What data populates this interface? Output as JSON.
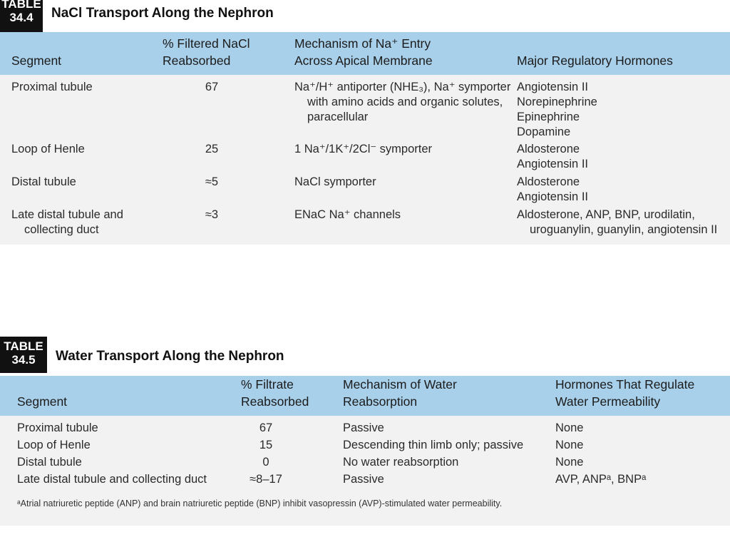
{
  "tables": [
    {
      "label": [
        "TABLE",
        "34.4"
      ],
      "title": "NaCl Transport Along the Nephron",
      "columns": [
        [
          "Segment"
        ],
        [
          "% Filtered NaCl",
          "Reabsorbed"
        ],
        [
          "Mechanism of Na⁺ Entry",
          "Across Apical Membrane"
        ],
        [
          "Major Regulatory Hormones"
        ]
      ],
      "rows": [
        [
          "Proximal tubule",
          "67",
          "Na⁺/H⁺ antiporter (NHE₃), Na⁺ symporter with amino acids and organic solutes, paracellular",
          [
            "Angiotensin II",
            "Norepinephrine",
            "Epinephrine",
            "Dopamine"
          ]
        ],
        [
          "Loop of Henle",
          "25",
          "1 Na⁺/1K⁺/2Cl⁻ symporter",
          [
            "Aldosterone",
            "Angiotensin II"
          ]
        ],
        [
          "Distal tubule",
          "≈5",
          "NaCl symporter",
          [
            "Aldosterone",
            "Angiotensin II"
          ]
        ],
        [
          "Late distal tubule and collecting duct",
          "≈3",
          "ENaC Na⁺ channels",
          "Aldosterone, ANP, BNP, urodilatin, uroguanylin, guanylin, angiotensin II"
        ]
      ]
    },
    {
      "label": [
        "TABLE",
        "34.5"
      ],
      "title": "Water Transport Along the Nephron",
      "columns": [
        [
          "Segment"
        ],
        [
          "% Filtrate",
          "Reabsorbed"
        ],
        [
          "Mechanism of Water",
          "Reabsorption"
        ],
        [
          "Hormones That Regulate",
          "Water Permeability"
        ]
      ],
      "rows": [
        [
          "Proximal tubule",
          "67",
          "Passive",
          "None"
        ],
        [
          "Loop of Henle",
          "15",
          "Descending thin limb only; passive",
          "None"
        ],
        [
          "Distal tubule",
          "0",
          "No water reabsorption",
          "None"
        ],
        [
          "Late distal tubule and collecting duct",
          "≈8–17",
          "Passive",
          "AVP, ANPᵃ, BNPᵃ"
        ]
      ],
      "footnote": "ᵃAtrial natriuretic peptide (ANP) and brain natriuretic peptide (BNP) inhibit vasopressin (AVP)-stimulated water permeability."
    }
  ]
}
